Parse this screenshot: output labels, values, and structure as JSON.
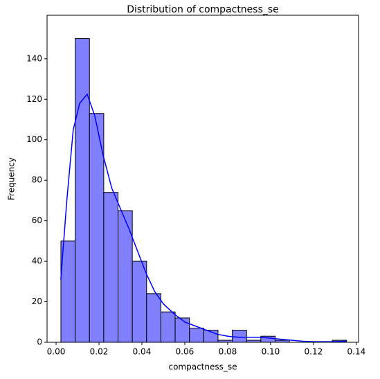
{
  "chart_data": {
    "type": "histogram",
    "title": "Distribution of compactness_se",
    "x_label": "compactness_se",
    "y_label": "Frequency",
    "bins": [
      0.002252,
      0.008909,
      0.015567,
      0.022224,
      0.028882,
      0.035539,
      0.042196,
      0.048854,
      0.055511,
      0.062169,
      0.068826,
      0.075483,
      0.082141,
      0.088798,
      0.095456,
      0.102113,
      0.10877,
      0.115428,
      0.122085,
      0.128743,
      0.1354
    ],
    "counts": [
      50,
      150,
      113,
      74,
      65,
      40,
      24,
      15,
      12,
      7,
      6,
      1,
      6,
      1,
      3,
      1,
      0,
      0,
      0,
      1
    ],
    "color": "#8080ff",
    "edge_color": "#000000",
    "kde": {
      "color": "#0000ff",
      "x": [
        0.0022,
        0.005,
        0.008,
        0.011,
        0.0145,
        0.018,
        0.022,
        0.026,
        0.03,
        0.034,
        0.038,
        0.042,
        0.046,
        0.05,
        0.055,
        0.06,
        0.065,
        0.07,
        0.075,
        0.08,
        0.085,
        0.09,
        0.095,
        0.1,
        0.105,
        0.11,
        0.115,
        0.12,
        0.13,
        0.1354
      ],
      "y": [
        31,
        70,
        105,
        118,
        122.5,
        112,
        92,
        76,
        66,
        56,
        45,
        34,
        25,
        19,
        14,
        10,
        8,
        6,
        4,
        3,
        2.5,
        2.5,
        2.5,
        2,
        1.5,
        1,
        0.5,
        0.3,
        0.3,
        0.5
      ]
    },
    "xlim": [
      -0.0042,
      0.141
    ],
    "ylim": [
      0,
      161.5
    ],
    "xticks": [
      {
        "value": 0,
        "label": "0.00"
      },
      {
        "value": 0.02,
        "label": "0.02"
      },
      {
        "value": 0.04,
        "label": "0.04"
      },
      {
        "value": 0.06,
        "label": "0.06"
      },
      {
        "value": 0.08,
        "label": "0.08"
      },
      {
        "value": 0.1,
        "label": "0.10"
      },
      {
        "value": 0.12,
        "label": "0.12"
      },
      {
        "value": 0.14,
        "label": "0.14"
      }
    ],
    "yticks": [
      0,
      20,
      40,
      60,
      80,
      100,
      120,
      140
    ]
  }
}
